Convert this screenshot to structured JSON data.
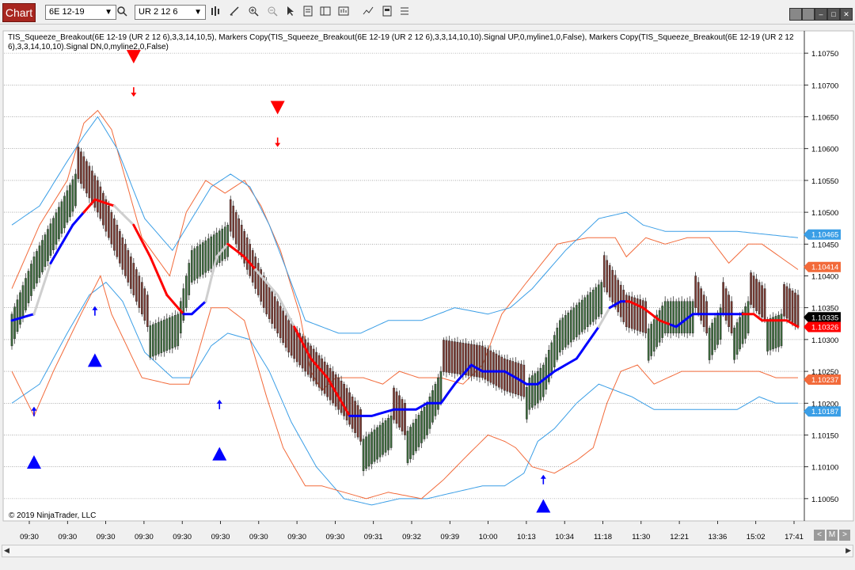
{
  "toolbar": {
    "chart_tab": "Chart",
    "instrument": "6E 12-19",
    "bar_type": "UR 2 12 6",
    "icons": [
      "search-icon",
      "bar-style-icon",
      "draw-tool-icon",
      "zoom-in-icon",
      "zoom-out-icon",
      "pointer-icon",
      "properties-icon",
      "templates-icon",
      "strategy-icon",
      "indicator-icon",
      "data-box-icon",
      "list-icon"
    ]
  },
  "legend_text": "TIS_Squeeze_Breakout(6E 12-19 (UR 2 12 6),3,3,14,10,5), Markers Copy(TIS_Squeeze_Breakout(6E 12-19 (UR 2 12 6),3,3,14,10,10).Signal UP,0,myline1,0,False), Markers Copy(TIS_Squeeze_Breakout(6E 12-19 (UR 2 12 6),3,3,14,10,10).Signal DN,0,myline2,0,False)",
  "copyright": "© 2019 NinjaTrader, LLC",
  "colors": {
    "up_bar": "#3d6b3d",
    "down_bar": "#7a3a32",
    "outer_band": "#f26a3a",
    "inner_band": "#3a9ee6",
    "signal_up": "#0000ff",
    "signal_dn": "#ff0000",
    "neutral": "#cfcfcf",
    "last_price_bg": "#000000"
  },
  "chart_data": {
    "type": "line",
    "title": "",
    "xlabel": "",
    "ylabel": "",
    "ylim": [
      1.10015,
      1.10785
    ],
    "x_tick_labels": [
      "09:30",
      "09:30",
      "09:30",
      "09:30",
      "09:30",
      "09:30",
      "09:30",
      "09:30",
      "09:30",
      "09:31",
      "09:32",
      "09:39",
      "10:00",
      "10:13",
      "10:34",
      "11:18",
      "11:30",
      "12:21",
      "13:36",
      "15:02",
      "17:41"
    ],
    "y_ticks": [
      1.1005,
      1.101,
      1.1015,
      1.102,
      1.1025,
      1.103,
      1.1035,
      1.104,
      1.1045,
      1.105,
      1.1055,
      1.106,
      1.1065,
      1.107,
      1.1075
    ],
    "y_tick_labels": [
      "1.10050",
      "1.10100",
      "1.10150",
      "1.10200",
      "1.10250",
      "1.10300",
      "1.10350",
      "1.10400",
      "1.10450",
      "1.10500",
      "1.10550",
      "1.10600",
      "1.10650",
      "1.10700",
      "1.10750"
    ],
    "price_labels": [
      {
        "name": "upper-inner-band-price",
        "value": 1.10465,
        "text": "1.10465",
        "color": "#3a9ee6"
      },
      {
        "name": "upper-outer-band-price",
        "value": 1.10414,
        "text": "1.10414",
        "color": "#f26a3a"
      },
      {
        "name": "last-price",
        "value": 1.10335,
        "text": "1.10335",
        "color": "#000000"
      },
      {
        "name": "squeeze-line-price",
        "value": 1.10326,
        "text": "1.10326",
        "color": "#ff0000"
      },
      {
        "name": "lower-outer-band-price",
        "value": 1.10237,
        "text": "1.10237",
        "color": "#f26a3a"
      },
      {
        "name": "lower-inner-band-price",
        "value": 1.10187,
        "text": "1.10187",
        "color": "#3a9ee6"
      }
    ],
    "bars": {
      "knots_i": [
        0,
        8,
        23,
        27,
        31,
        49,
        60,
        65,
        78,
        92,
        100,
        120,
        126,
        137,
        142,
        150,
        155,
        170,
        178,
        185,
        187,
        190,
        192,
        198,
        213,
        222,
        229,
        236,
        246,
        251,
        256,
        260,
        266,
        272,
        278,
        284
      ],
      "knots_v": [
        1.1034,
        1.1043,
        1.1056,
        1.1053,
        1.105,
        1.1032,
        1.1034,
        1.1044,
        1.1048,
        1.1034,
        1.1028,
        1.1018,
        1.1014,
        1.1018,
        1.1015,
        1.102,
        1.1025,
        1.1024,
        1.1022,
        1.1021,
        1.1024,
        1.1025,
        1.1026,
        1.1033,
        1.1039,
        1.1032,
        1.1031,
        1.1036,
        1.1036,
        1.1031,
        1.1035,
        1.1031,
        1.1036,
        1.1033,
        1.1034,
        1.1032
      ],
      "range": 0.0005
    },
    "series": [
      {
        "name": "upper-outer-band",
        "color": "#f26a3a",
        "x": [
          0,
          10,
          20,
          26,
          31,
          36,
          47,
          57,
          63,
          70,
          77,
          84,
          90,
          97,
          104,
          108,
          112,
          117,
          127,
          134,
          140,
          147,
          155,
          163,
          170,
          177,
          186,
          197,
          208,
          218,
          222,
          229,
          236,
          244,
          252,
          259,
          266,
          271,
          284
        ],
        "y": [
          1.1038,
          1.1048,
          1.1055,
          1.1064,
          1.1066,
          1.1063,
          1.1046,
          1.104,
          1.105,
          1.1055,
          1.1053,
          1.1055,
          1.1051,
          1.1044,
          1.1034,
          1.1025,
          1.1022,
          1.1024,
          1.1024,
          1.1023,
          1.1025,
          1.1024,
          1.1024,
          1.1023,
          1.1026,
          1.1034,
          1.1039,
          1.1045,
          1.1046,
          1.1046,
          1.1043,
          1.1046,
          1.1045,
          1.1046,
          1.1046,
          1.1042,
          1.1045,
          1.1045,
          1.1041
        ]
      },
      {
        "name": "upper-inner-band",
        "color": "#3a9ee6",
        "x": [
          0,
          10,
          20,
          26,
          31,
          38,
          48,
          58,
          65,
          72,
          79,
          86,
          93,
          100,
          106,
          112,
          118,
          126,
          136,
          148,
          160,
          172,
          180,
          188,
          200,
          212,
          222,
          228,
          236,
          248,
          262,
          284
        ],
        "y": [
          1.1048,
          1.1051,
          1.1058,
          1.1062,
          1.1065,
          1.106,
          1.1049,
          1.1044,
          1.1049,
          1.1054,
          1.1056,
          1.1054,
          1.1048,
          1.104,
          1.1033,
          1.1032,
          1.1031,
          1.1031,
          1.1033,
          1.1033,
          1.1035,
          1.1034,
          1.1035,
          1.1038,
          1.1044,
          1.1049,
          1.105,
          1.1048,
          1.1047,
          1.1047,
          1.1047,
          1.1046
        ]
      },
      {
        "name": "lower-inner-band",
        "color": "#3a9ee6",
        "x": [
          0,
          10,
          20,
          28,
          34,
          40,
          48,
          58,
          65,
          72,
          78,
          86,
          93,
          101,
          110,
          120,
          130,
          140,
          150,
          160,
          170,
          178,
          185,
          190,
          196,
          204,
          212,
          218,
          224,
          232,
          240,
          252,
          262,
          270,
          276
        ],
        "y": [
          1.102,
          1.1023,
          1.1031,
          1.1037,
          1.1039,
          1.1036,
          1.1028,
          1.1024,
          1.1024,
          1.1029,
          1.1031,
          1.103,
          1.1025,
          1.1017,
          1.101,
          1.1005,
          1.1004,
          1.1005,
          1.1005,
          1.1006,
          1.1007,
          1.1007,
          1.1009,
          1.1014,
          1.1016,
          1.102,
          1.1023,
          1.1022,
          1.1021,
          1.1019,
          1.1019,
          1.1019,
          1.1019,
          1.1021,
          1.102
        ]
      },
      {
        "name": "lower-outer-band",
        "color": "#f26a3a",
        "x": [
          0,
          8,
          15,
          25,
          32,
          36,
          47,
          57,
          64,
          72,
          78,
          84,
          92,
          98,
          106,
          112,
          120,
          128,
          136,
          148,
          156,
          165,
          172,
          178,
          182,
          188,
          196,
          204,
          210,
          215,
          220,
          226,
          232,
          242,
          252,
          262,
          270,
          276
        ],
        "y": [
          1.1025,
          1.1018,
          1.1025,
          1.1034,
          1.104,
          1.1034,
          1.1024,
          1.1023,
          1.1023,
          1.1035,
          1.1035,
          1.1033,
          1.1021,
          1.1013,
          1.1007,
          1.1007,
          1.1006,
          1.1005,
          1.1006,
          1.1005,
          1.1008,
          1.1012,
          1.1015,
          1.1014,
          1.1013,
          1.101,
          1.1009,
          1.1011,
          1.1013,
          1.102,
          1.1025,
          1.1026,
          1.1023,
          1.1025,
          1.1025,
          1.1025,
          1.1025,
          1.1024
        ]
      },
      {
        "name": "squeeze-line",
        "x": [
          0,
          8,
          14,
          22,
          26,
          30,
          37,
          44,
          50,
          56,
          62,
          65,
          70,
          74,
          78,
          84,
          88,
          96,
          102,
          108,
          114,
          118,
          122,
          130,
          138,
          146,
          150,
          155,
          160,
          166,
          170,
          172,
          178,
          182,
          186,
          190,
          196,
          204,
          212,
          216,
          220,
          223,
          228,
          234,
          240,
          246,
          252,
          256,
          260,
          264,
          268,
          271,
          276,
          280,
          284
        ],
        "y": [
          1.1033,
          1.1034,
          1.1042,
          1.1048,
          1.105,
          1.1052,
          1.1051,
          1.1048,
          1.1043,
          1.1037,
          1.1034,
          1.1034,
          1.1036,
          1.1043,
          1.1045,
          1.1043,
          1.1041,
          1.1037,
          1.1032,
          1.1027,
          1.1024,
          1.1021,
          1.1018,
          1.1018,
          1.1019,
          1.1019,
          1.102,
          1.102,
          1.1023,
          1.1026,
          1.1025,
          1.1025,
          1.1025,
          1.1024,
          1.1023,
          1.1023,
          1.1025,
          1.1027,
          1.1032,
          1.1035,
          1.1036,
          1.1036,
          1.1035,
          1.1033,
          1.1032,
          1.1034,
          1.1034,
          1.1034,
          1.1034,
          1.1034,
          1.1034,
          1.1033,
          1.1033,
          1.1033,
          1.1032
        ],
        "segments": [
          [
            0,
            8,
            "#0000ff"
          ],
          [
            8,
            14,
            "#cfcfcf"
          ],
          [
            14,
            22,
            "#0000ff"
          ],
          [
            22,
            26,
            "#0000ff"
          ],
          [
            26,
            37,
            "#ff0000"
          ],
          [
            37,
            44,
            "#cfcfcf"
          ],
          [
            44,
            56,
            "#ff0000"
          ],
          [
            56,
            62,
            "#ff0000"
          ],
          [
            62,
            70,
            "#0000ff"
          ],
          [
            70,
            78,
            "#cfcfcf"
          ],
          [
            78,
            88,
            "#ff0000"
          ],
          [
            88,
            102,
            "#cfcfcf"
          ],
          [
            102,
            122,
            "#ff0000"
          ],
          [
            122,
            166,
            "#0000ff"
          ],
          [
            166,
            182,
            "#0000ff"
          ],
          [
            182,
            190,
            "#0000ff"
          ],
          [
            190,
            212,
            "#0000ff"
          ],
          [
            212,
            216,
            "#cfcfcf"
          ],
          [
            216,
            222,
            "#0000ff"
          ],
          [
            222,
            238,
            "#ff0000"
          ],
          [
            238,
            264,
            "#0000ff"
          ],
          [
            264,
            284,
            "#ff0000"
          ]
        ]
      }
    ],
    "signals_up": [
      {
        "i": 8,
        "triangle": 1.10107,
        "arrow": 1.10187
      },
      {
        "i": 30,
        "triangle": 1.10267,
        "arrow": 1.10345
      },
      {
        "i": 75,
        "triangle": 1.1012,
        "arrow": 1.10198
      },
      {
        "i": 192,
        "triangle": 1.10038,
        "arrow": 1.1008
      }
    ],
    "signals_dn": [
      {
        "i": 44,
        "triangle": 1.10745,
        "arrow": 1.10689
      },
      {
        "i": 96,
        "triangle": 1.10665,
        "arrow": 1.1061
      }
    ]
  }
}
